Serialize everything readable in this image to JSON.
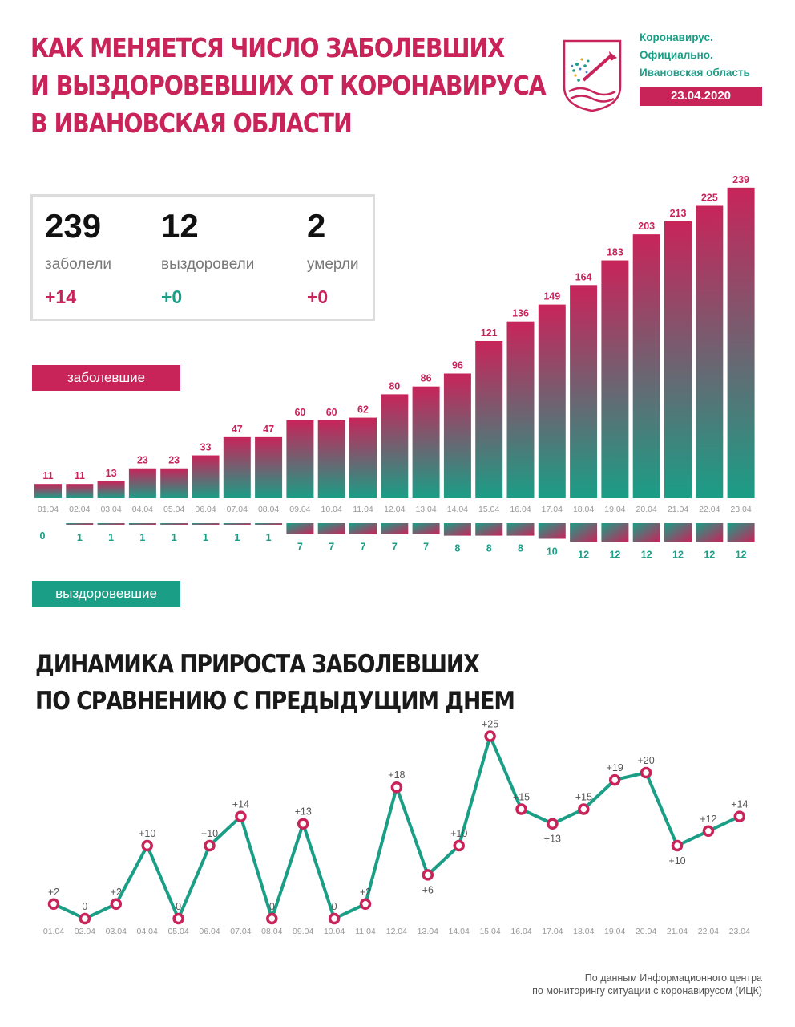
{
  "header": {
    "title_lines": [
      "КАК МЕНЯЕТСЯ ЧИСЛО ЗАБОЛЕВШИХ",
      "И ВЫЗДОРОВЕВШИХ ОТ КОРОНАВИРУСА",
      "В ИВАНОВСКАЯ ОБЛАСТИ"
    ],
    "brand_lines": [
      "Коронавирус.",
      "Официально.",
      "Ивановская область"
    ],
    "date": "23.04.2020"
  },
  "summary": {
    "cases": {
      "value": "239",
      "label": "заболели",
      "delta": "+14"
    },
    "recovered": {
      "value": "12",
      "label": "выздоровели",
      "delta": "+0"
    },
    "deaths": {
      "value": "2",
      "label": "умерли",
      "delta": "+0"
    }
  },
  "legend": {
    "cases_label": "заболевшие",
    "recovered_label": "выздоровевшие"
  },
  "section2": {
    "title_lines": [
      "ДИНАМИКА ПРИРОСТА ЗАБОЛЕВШИХ",
      "ПО СРАВНЕНИЮ С ПРЕДЫДУЩИМ ДНЕМ"
    ]
  },
  "source": [
    "По данным Информационного центра",
    "по мониторингу ситуации с коронавирусом (ИЦК)"
  ],
  "colors": {
    "accent": "#c8245a",
    "teal": "#1a9e86"
  },
  "chart_data": [
    {
      "type": "bar",
      "title": "",
      "categories": [
        "01.04",
        "02.04",
        "03.04",
        "04.04",
        "05.04",
        "06.04",
        "07.04",
        "08.04",
        "09.04",
        "10.04",
        "11.04",
        "12.04",
        "13.04",
        "14.04",
        "15.04",
        "16.04",
        "17.04",
        "18.04",
        "19.04",
        "20.04",
        "21.04",
        "22.04",
        "23.04"
      ],
      "series": [
        {
          "name": "заболевшие",
          "values": [
            11,
            11,
            13,
            23,
            23,
            33,
            47,
            47,
            60,
            60,
            62,
            80,
            86,
            96,
            121,
            136,
            149,
            164,
            183,
            203,
            213,
            225,
            239
          ]
        },
        {
          "name": "выздоровевшие",
          "values": [
            0,
            1,
            1,
            1,
            1,
            1,
            1,
            1,
            7,
            7,
            7,
            7,
            7,
            8,
            8,
            8,
            10,
            12,
            12,
            12,
            12,
            12,
            12
          ]
        }
      ]
    },
    {
      "type": "line",
      "title": "ДИНАМИКА ПРИРОСТА ЗАБОЛЕВШИХ ПО СРАВНЕНИЮ С ПРЕДЫДУЩИМ ДНЕМ",
      "categories": [
        "01.04",
        "02.04",
        "03.04",
        "04.04",
        "05.04",
        "06.04",
        "07.04",
        "08.04",
        "09.04",
        "10.04",
        "11.04",
        "12.04",
        "13.04",
        "14.04",
        "15.04",
        "16.04",
        "17.04",
        "18.04",
        "19.04",
        "20.04",
        "21.04",
        "22.04",
        "23.04"
      ],
      "values": [
        2,
        0,
        2,
        10,
        0,
        10,
        14,
        0,
        13,
        0,
        2,
        18,
        6,
        10,
        25,
        15,
        13,
        15,
        19,
        20,
        10,
        12,
        14
      ],
      "labels": [
        "+2",
        "0",
        "+2",
        "+10",
        "0",
        "+10",
        "+14",
        "0",
        "+13",
        "0",
        "+2",
        "+18",
        "+6",
        "+10",
        "+25",
        "+15",
        "+13",
        "+15",
        "+19",
        "+20",
        "+10",
        "+12",
        "+14"
      ]
    }
  ]
}
